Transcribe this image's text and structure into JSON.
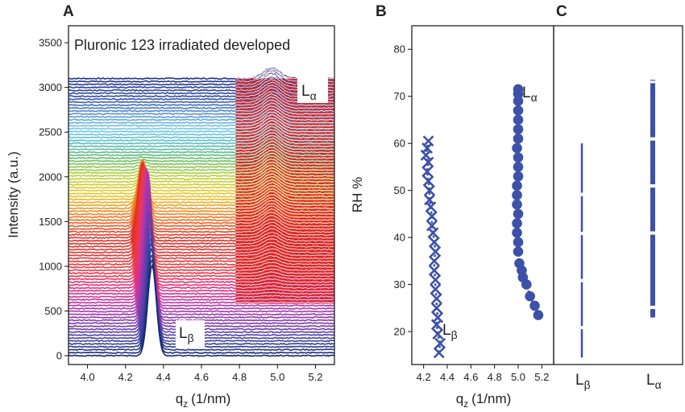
{
  "panels": {
    "a": {
      "label": "A",
      "title": "Pluronic 123 irradiated developed"
    },
    "b": {
      "label": "B"
    },
    "c": {
      "label": "C"
    }
  },
  "phase_labels": {
    "beta": "L",
    "beta_sub": "β",
    "alpha": "L",
    "alpha_sub": "α"
  },
  "chart_data": [
    {
      "type": "line",
      "panel": "A",
      "title": "Pluronic 123 irradiated developed",
      "xlabel": "qz (1/nm)",
      "xlabel_main": "q",
      "xlabel_sub": "z",
      "xlabel_unit": "(1/nm)",
      "ylabel": "Intensity (a.u.)",
      "xlim": [
        3.9,
        5.3
      ],
      "ylim": [
        0,
        3600
      ],
      "xticks": [
        "4.0",
        "4.2",
        "4.4",
        "4.6",
        "4.8",
        "5.0",
        "5.2"
      ],
      "yticks": [
        "0",
        "500",
        "1000",
        "1500",
        "2000",
        "2500",
        "3000",
        "3500"
      ],
      "stacked_traces": 95,
      "stack_offset_range": [
        0,
        3100
      ],
      "beta_peak_q": 4.32,
      "alpha_peak_q": 4.97,
      "alpha_region_q": [
        4.78,
        5.3
      ],
      "alpha_region_intensity": [
        580,
        3100
      ],
      "annotations": [
        "Lβ",
        "Lα"
      ],
      "colormap": "rainbow (navy → violet → red → yellow → cyan → navy)",
      "grid": false
    },
    {
      "type": "scatter",
      "panel": "B",
      "xlabel": "qz (1/nm)",
      "xlabel_main": "q",
      "xlabel_sub": "z",
      "xlabel_unit": "(1/nm)",
      "ylabel": "RH %",
      "xlim": [
        4.1,
        5.3
      ],
      "ylim": [
        13,
        85
      ],
      "xticks": [
        "4.2",
        "4.4",
        "4.6",
        "4.8",
        "5.0",
        "5.2"
      ],
      "yticks": [
        "20",
        "30",
        "40",
        "50",
        "60",
        "70",
        "80"
      ],
      "series": [
        {
          "name": "Lβ",
          "marker": "x",
          "color": "#3d51a8",
          "points": [
            [
              4.33,
              15.5
            ],
            [
              4.34,
              17.5
            ],
            [
              4.32,
              19.5
            ],
            [
              4.31,
              21.5
            ],
            [
              4.32,
              23
            ],
            [
              4.31,
              25
            ],
            [
              4.31,
              27
            ],
            [
              4.3,
              29
            ],
            [
              4.3,
              31
            ],
            [
              4.29,
              33
            ],
            [
              4.29,
              35
            ],
            [
              4.3,
              37
            ],
            [
              4.29,
              39
            ],
            [
              4.28,
              41
            ],
            [
              4.27,
              42.5
            ],
            [
              4.27,
              44.5
            ],
            [
              4.26,
              46.5
            ],
            [
              4.25,
              48
            ],
            [
              4.25,
              50
            ],
            [
              4.24,
              52
            ],
            [
              4.23,
              54
            ],
            [
              4.24,
              56
            ],
            [
              4.22,
              57.5
            ],
            [
              4.23,
              59
            ],
            [
              4.24,
              60.5
            ]
          ]
        },
        {
          "name": "Lα",
          "marker": "circle",
          "color": "#3d51a8",
          "points": [
            [
              5.17,
              23.5
            ],
            [
              5.14,
              25.5
            ],
            [
              5.1,
              27.5
            ],
            [
              5.07,
              30
            ],
            [
              5.04,
              31.5
            ],
            [
              5.03,
              33
            ],
            [
              5.01,
              34.5
            ],
            [
              5.0,
              37
            ],
            [
              5.0,
              39
            ],
            [
              4.99,
              41
            ],
            [
              4.99,
              43
            ],
            [
              5.0,
              45
            ],
            [
              4.99,
              47
            ],
            [
              4.99,
              49
            ],
            [
              4.99,
              51
            ],
            [
              5.0,
              53
            ],
            [
              5.0,
              55
            ],
            [
              5.0,
              57
            ],
            [
              4.99,
              59
            ],
            [
              5.0,
              61
            ],
            [
              5.0,
              63
            ],
            [
              5.0,
              65
            ],
            [
              5.0,
              67
            ],
            [
              5.0,
              69
            ],
            [
              5.0,
              70.5
            ],
            [
              5.0,
              71.5
            ]
          ]
        }
      ],
      "annotations": [
        "Lβ",
        "Lα"
      ],
      "grid": false
    },
    {
      "type": "bar",
      "panel": "C",
      "ylim": [
        13,
        85
      ],
      "categories": [
        "Lβ",
        "Lα"
      ],
      "ranges": [
        [
          14.5,
          60
        ],
        [
          23,
          73.5
        ]
      ],
      "gaps": [
        [
          [
            20.5,
            21.2
          ],
          [
            30.5,
            31.2
          ],
          [
            40.5,
            41.2
          ],
          [
            48.8,
            49.5
          ]
        ],
        [
          [
            24.8,
            25.5
          ],
          [
            40.6,
            41.3
          ],
          [
            50.6,
            51.3
          ],
          [
            60.6,
            61.3
          ],
          [
            72.8,
            73.3
          ]
        ]
      ],
      "color": "#3d51a8"
    }
  ]
}
